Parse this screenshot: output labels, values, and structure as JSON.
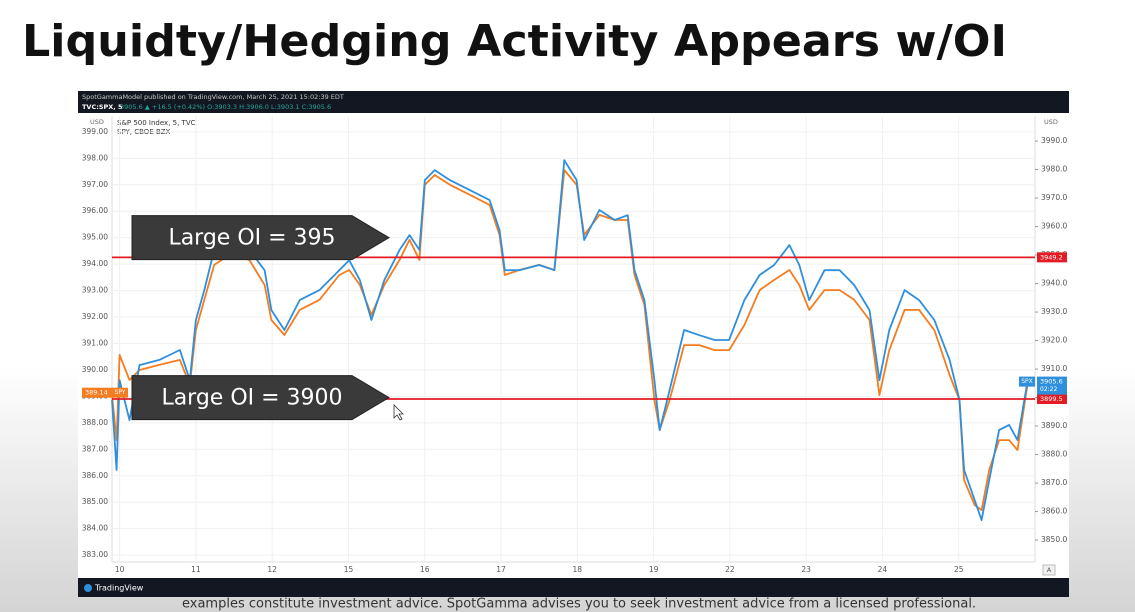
{
  "title": "Liquidty/Hedging Activity Appears w/OI",
  "footer": "examples constitute investment advice.  SpotGamma advises you to seek investment advice from a licensed professional.",
  "chart_data": {
    "type": "line",
    "published": "SpotGammaModel published on TradingView.com, March 25, 2021 15:02:39 EDT",
    "symbol": "TVC:SPX, 5",
    "quote": "3905.6 ▲ +16.5 (+0.42%)  O:3903.3  H:3906.0  L:3903.1  C:3905.6",
    "legend": [
      "S&P 500 Index, 5, TVC",
      "SPY, CBOE BZX"
    ],
    "y_unit": "USD",
    "y2_unit": "USD",
    "branding": "TradingView",
    "scale_mode": "A",
    "grid": true,
    "x": [
      -0.1,
      -0.04,
      0,
      0.13,
      0.26,
      0.52,
      0.79,
      0.92,
      1,
      1.11,
      1.24,
      1.44,
      1.7,
      1.9,
      1.99,
      2.16,
      2.36,
      2.62,
      2.88,
      3.01,
      3.15,
      3.3,
      3.47,
      3.67,
      3.8,
      3.93,
      4,
      4.13,
      4.33,
      4.59,
      4.85,
      4.98,
      5.05,
      5.24,
      5.5,
      5.7,
      5.83,
      5.99,
      6.09,
      6.29,
      6.49,
      6.66,
      6.75,
      6.88,
      7.01,
      7.08,
      7.21,
      7.4,
      7.6,
      7.8,
      7.99,
      8.19,
      8.39,
      8.58,
      8.78,
      8.91,
      9.04,
      9.24,
      9.44,
      9.63,
      9.83,
      9.96,
      10.09,
      10.29,
      10.48,
      10.68,
      10.88,
      11.01,
      11.07,
      11.21,
      11.3,
      11.4,
      11.53,
      11.66,
      11.77,
      11.9
    ],
    "xlim": [
      -0.1,
      12
    ],
    "xticks": [
      {
        "value": 0,
        "label": "10"
      },
      {
        "value": 1,
        "label": "11"
      },
      {
        "value": 2,
        "label": "12"
      },
      {
        "value": 3,
        "label": "15"
      },
      {
        "value": 4,
        "label": "16"
      },
      {
        "value": 5,
        "label": "17"
      },
      {
        "value": 6,
        "label": "18"
      },
      {
        "value": 7,
        "label": "19"
      },
      {
        "value": 8,
        "label": "22"
      },
      {
        "value": 9,
        "label": "23"
      },
      {
        "value": 10,
        "label": "24"
      },
      {
        "value": 11,
        "label": "25"
      }
    ],
    "ylim": [
      382.74,
      399.6
    ],
    "yticks": [
      {
        "value": 383,
        "label": "383.00"
      },
      {
        "value": 384,
        "label": "384.00"
      },
      {
        "value": 385,
        "label": "385.00"
      },
      {
        "value": 386,
        "label": "386.00"
      },
      {
        "value": 387,
        "label": "387.00"
      },
      {
        "value": 388,
        "label": "388.00"
      },
      {
        "value": 389,
        "label": "389.00"
      },
      {
        "value": 390,
        "label": "390.00"
      },
      {
        "value": 391,
        "label": "391.00"
      },
      {
        "value": 392,
        "label": "392.00"
      },
      {
        "value": 393,
        "label": "393.00"
      },
      {
        "value": 394,
        "label": "394.00"
      },
      {
        "value": 395,
        "label": "395.00"
      },
      {
        "value": 396,
        "label": "396.00"
      },
      {
        "value": 397,
        "label": "397.00"
      },
      {
        "value": 398,
        "label": "398.00"
      },
      {
        "value": 399,
        "label": "399.00"
      }
    ],
    "y2lim": [
      3842.3,
      3998.8
    ],
    "y2ticks": [
      {
        "value": 3850,
        "label": "3850.0"
      },
      {
        "value": 3860,
        "label": "3860.0"
      },
      {
        "value": 3870,
        "label": "3870.0"
      },
      {
        "value": 3880,
        "label": "3880.0"
      },
      {
        "value": 3890,
        "label": "3890.0"
      },
      {
        "value": 3900,
        "label": "3900.0"
      },
      {
        "value": 3910,
        "label": "3910.0"
      },
      {
        "value": 3920,
        "label": "3920.0"
      },
      {
        "value": 3930,
        "label": "3930.0"
      },
      {
        "value": 3940,
        "label": "3940.0"
      },
      {
        "value": 3950,
        "label": "3950.0"
      },
      {
        "value": 3960,
        "label": "3960.0"
      },
      {
        "value": 3970,
        "label": "3970.0"
      },
      {
        "value": 3980,
        "label": "3980.0"
      },
      {
        "value": 3990,
        "label": "3990.0"
      }
    ],
    "series": [
      {
        "name": "SPY",
        "color": "#f57c1f",
        "axis": "y",
        "values": [
          389.05,
          387.35,
          390.57,
          389.62,
          390.0,
          390.19,
          390.38,
          389.43,
          391.51,
          392.65,
          393.97,
          394.35,
          394.16,
          393.21,
          391.89,
          391.32,
          392.27,
          392.65,
          393.59,
          393.78,
          393.21,
          392.08,
          393.21,
          394.16,
          394.92,
          394.16,
          397.0,
          397.37,
          397.0,
          396.62,
          396.24,
          395.1,
          393.59,
          393.78,
          393.97,
          393.78,
          397.56,
          397.0,
          395.1,
          395.86,
          395.67,
          395.67,
          393.59,
          392.46,
          388.86,
          387.73,
          388.86,
          390.94,
          390.94,
          390.75,
          390.75,
          391.7,
          393.02,
          393.4,
          393.78,
          393.21,
          392.27,
          393.02,
          393.02,
          392.65,
          391.89,
          389.05,
          390.75,
          392.27,
          392.27,
          391.51,
          389.81,
          388.86,
          385.84,
          384.89,
          384.7,
          386.22,
          387.35,
          387.35,
          386.97,
          389.43
        ]
      },
      {
        "name": "SPX",
        "color": "#2e8fdd",
        "axis": "y2",
        "values": [
          3899.1,
          3874.6,
          3906.1,
          3892.1,
          3911.4,
          3913.2,
          3916.7,
          3906.1,
          3927.2,
          3937.7,
          3951.8,
          3953.5,
          3951.8,
          3944.7,
          3930.7,
          3923.7,
          3934.2,
          3937.7,
          3944.7,
          3948.2,
          3941.2,
          3927.2,
          3941.2,
          3951.8,
          3957,
          3951.8,
          3976.3,
          3979.8,
          3976.3,
          3972.8,
          3969.3,
          3958.8,
          3944.7,
          3944.7,
          3946.5,
          3944.7,
          3983.3,
          3976.3,
          3955.3,
          3965.8,
          3962.3,
          3964,
          3944.7,
          3934.2,
          3906.1,
          3888.6,
          3902.6,
          3923.7,
          3921.9,
          3920.2,
          3920.2,
          3934.2,
          3943,
          3946.5,
          3953.5,
          3946.5,
          3934.2,
          3944.7,
          3944.7,
          3939.5,
          3930.7,
          3906.1,
          3923.7,
          3937.7,
          3934.2,
          3927.2,
          3913.2,
          3899.1,
          3874.6,
          3864,
          3857,
          3871,
          3888.6,
          3890.4,
          3885.1,
          3905.4
        ]
      }
    ],
    "hlines": [
      {
        "value": 3949.2,
        "axis": "y2",
        "color": "#e31b23"
      },
      {
        "value": 3899.5,
        "axis": "y2",
        "color": "#e31b23"
      }
    ],
    "price_tags": [
      {
        "name": "SPX",
        "value": 3905.6,
        "countdown": "02:22",
        "axis": "y2",
        "color": "#2e8fdd"
      },
      {
        "name": "SPY",
        "value": 389.14,
        "axis": "y",
        "color": "#f57c1f"
      }
    ],
    "annotations": [
      {
        "text": "Large OI = 395",
        "y": 395,
        "axis": "y"
      },
      {
        "text": "Large OI = 3900",
        "y": 3900,
        "axis": "y2"
      }
    ]
  }
}
